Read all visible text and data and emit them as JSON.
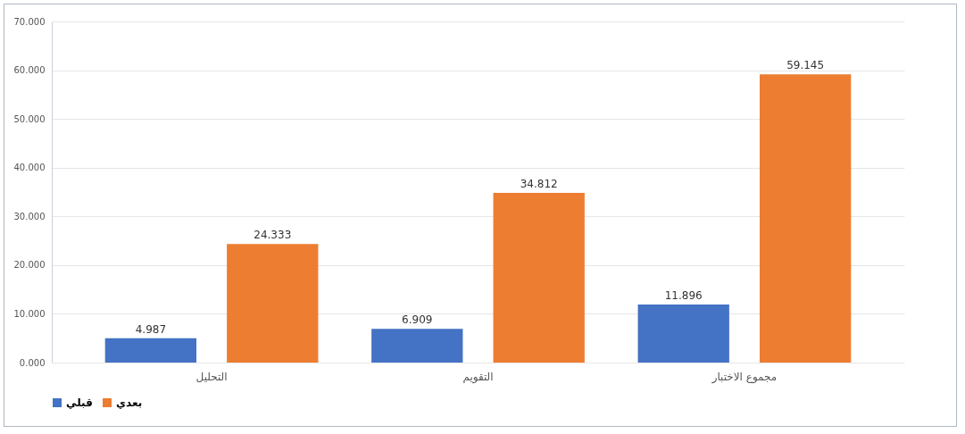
{
  "chart_data": {
    "type": "bar",
    "categories": [
      "التحليل",
      "التقويم",
      "مجموع الاختبار"
    ],
    "series": [
      {
        "name": "قبلي",
        "color": "#4472c4",
        "values": [
          4.987,
          6.909,
          11.896
        ]
      },
      {
        "name": "بعدي",
        "color": "#ed7d31",
        "values": [
          24.333,
          34.812,
          59.145
        ]
      }
    ],
    "ylim": [
      0,
      70
    ],
    "yticks": [
      {
        "value": 0,
        "label": "0.000"
      },
      {
        "value": 10,
        "label": "10.000"
      },
      {
        "value": 20,
        "label": "20.000"
      },
      {
        "value": 30,
        "label": "30.000"
      },
      {
        "value": 40,
        "label": "40.000"
      },
      {
        "value": 50,
        "label": "50.000"
      },
      {
        "value": 60,
        "label": "60.000"
      },
      {
        "value": 70,
        "label": "70.000"
      }
    ],
    "grid": "y",
    "legend": "bottom",
    "data_labels": true
  }
}
